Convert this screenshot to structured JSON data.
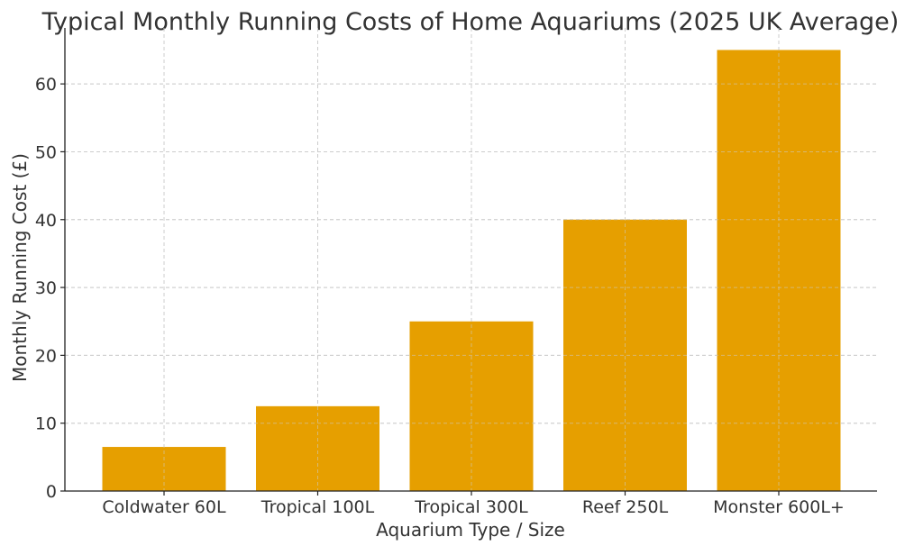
{
  "chart_data": {
    "type": "bar",
    "title": "Typical Monthly Running Costs of Home Aquariums (2025 UK Average)",
    "xlabel": "Aquarium Type / Size",
    "ylabel": "Monthly Running Cost (£)",
    "categories": [
      "Coldwater 60L",
      "Tropical 100L",
      "Tropical 300L",
      "Reef 250L",
      "Monster 600L+"
    ],
    "values": [
      6.5,
      12.5,
      25,
      40,
      65
    ],
    "ylim": [
      0,
      68.25
    ],
    "yticks": [
      0,
      10,
      20,
      30,
      40,
      50,
      60
    ],
    "grid": true,
    "bar_color": "#E69F00",
    "grid_color": "#cccccc",
    "axis_color": "#222222",
    "text_color": "#333333"
  }
}
